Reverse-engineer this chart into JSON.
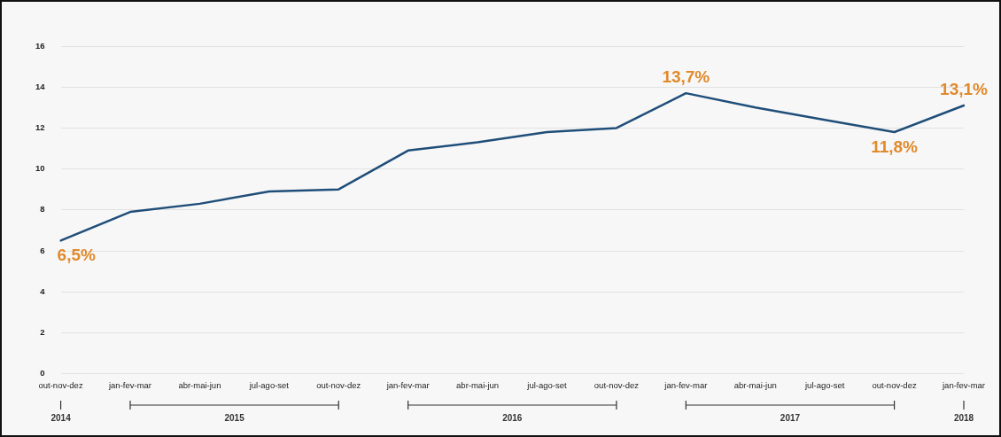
{
  "chart_data": {
    "type": "line",
    "categories": [
      "out-nov-dez",
      "jan-fev-mar",
      "abr-mai-jun",
      "jul-ago-set",
      "out-nov-dez",
      "jan-fev-mar",
      "abr-mai-jun",
      "jul-ago-set",
      "out-nov-dez",
      "jan-fev-mar",
      "abr-mai-jun",
      "jul-ago-set",
      "out-nov-dez",
      "jan-fev-mar"
    ],
    "series": [
      {
        "color": "#1f4e79",
        "values": [
          6.5,
          7.9,
          8.3,
          8.9,
          9.0,
          10.9,
          11.3,
          11.8,
          12.0,
          13.7,
          13.0,
          12.4,
          11.8,
          13.1
        ],
        "value_labels": [
          "6,5%",
          null,
          null,
          null,
          null,
          null,
          null,
          null,
          null,
          "13,7%",
          null,
          null,
          "11,8%",
          "13,1%"
        ]
      }
    ],
    "ylim": [
      0,
      16
    ],
    "yticks": [
      0,
      2,
      4,
      6,
      8,
      10,
      12,
      14,
      16
    ],
    "grid": "y",
    "legend": false,
    "marker": "none",
    "line_style": "solid",
    "annotations": [
      "2014",
      "2015",
      "2016",
      "2017",
      "2018"
    ]
  }
}
